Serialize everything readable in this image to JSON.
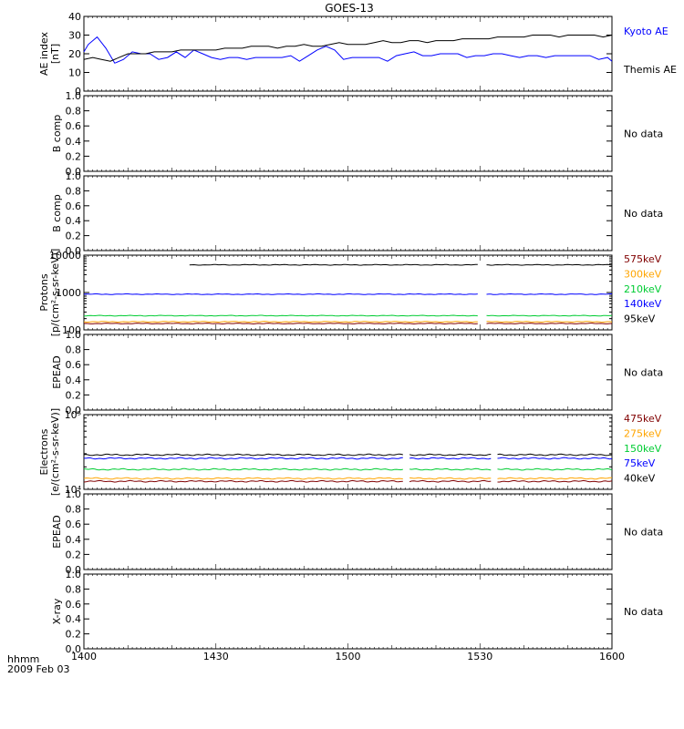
{
  "title": "GOES-13",
  "time_axis": {
    "ticks": [
      "1400",
      "1430",
      "1500",
      "1530",
      "1600"
    ],
    "label_units": "hhmm",
    "date": "2009 Feb 03"
  },
  "chart_data": [
    {
      "id": "ae",
      "type": "line",
      "ylabel": [
        "AE index",
        "[nT]"
      ],
      "ylim": [
        0,
        40
      ],
      "yticks": [
        "0",
        "10",
        "20",
        "30",
        "40"
      ],
      "legend": [
        {
          "label": "Kyoto AE",
          "color": "#0000ff"
        },
        {
          "label": "Themis AE",
          "color": "#000000"
        }
      ],
      "series": [
        {
          "name": "Kyoto AE",
          "color": "#0000ff",
          "t": [
            0,
            1,
            3,
            5,
            7,
            9,
            11,
            13,
            15,
            17,
            19,
            21,
            23,
            25,
            27,
            29,
            31,
            33,
            35,
            37,
            39,
            41,
            43,
            45,
            47,
            49,
            51,
            53,
            55,
            57,
            59,
            61,
            63,
            65,
            67,
            69,
            71,
            73,
            75,
            77,
            79,
            81,
            83,
            85,
            87,
            89,
            91,
            93,
            95,
            97,
            99,
            101,
            103,
            105,
            107,
            109,
            111,
            113,
            115,
            117,
            119,
            120
          ],
          "values": [
            21,
            25,
            29,
            23,
            15,
            17,
            21,
            20,
            20,
            17,
            18,
            21,
            18,
            22,
            20,
            18,
            17,
            18,
            18,
            17,
            18,
            18,
            18,
            18,
            19,
            16,
            19,
            22,
            24,
            22,
            17,
            18,
            18,
            18,
            18,
            16,
            19,
            20,
            21,
            19,
            19,
            20,
            20,
            20,
            18,
            19,
            19,
            20,
            20,
            19,
            18,
            19,
            19,
            18,
            19,
            19,
            19,
            19,
            19,
            17,
            18,
            16
          ]
        },
        {
          "name": "Themis AE",
          "color": "#000000",
          "t": [
            0,
            2,
            4,
            6,
            8,
            10,
            12,
            14,
            16,
            18,
            20,
            22,
            24,
            26,
            28,
            30,
            32,
            34,
            36,
            38,
            40,
            42,
            44,
            46,
            48,
            50,
            52,
            54,
            56,
            58,
            60,
            62,
            64,
            66,
            68,
            70,
            72,
            74,
            76,
            78,
            80,
            82,
            84,
            86,
            88,
            90,
            92,
            94,
            96,
            98,
            100,
            102,
            104,
            106,
            108,
            110,
            112,
            114,
            116,
            118,
            120
          ],
          "values": [
            17,
            18,
            17,
            16,
            18,
            20,
            20,
            20,
            21,
            21,
            21,
            22,
            22,
            22,
            22,
            22,
            23,
            23,
            23,
            24,
            24,
            24,
            23,
            24,
            24,
            25,
            24,
            24,
            25,
            26,
            25,
            25,
            25,
            26,
            27,
            26,
            26,
            27,
            27,
            26,
            27,
            27,
            27,
            28,
            28,
            28,
            28,
            29,
            29,
            29,
            29,
            30,
            30,
            30,
            29,
            30,
            30,
            30,
            30,
            29,
            30
          ]
        }
      ]
    },
    {
      "id": "bcomp1",
      "type": "line",
      "ylabel": [
        "B comp"
      ],
      "ylim": [
        0,
        1
      ],
      "yticks": [
        "0.0",
        "0.2",
        "0.4",
        "0.6",
        "0.8",
        "1.0"
      ],
      "status": "No data",
      "series": []
    },
    {
      "id": "bcomp2",
      "type": "line",
      "ylabel": [
        "B comp"
      ],
      "ylim": [
        0,
        1
      ],
      "yticks": [
        "0.0",
        "0.2",
        "0.4",
        "0.6",
        "0.8",
        "1.0"
      ],
      "status": "No data",
      "series": []
    },
    {
      "id": "protons",
      "type": "line",
      "log_scale": true,
      "ylabel": [
        "Protons",
        "[p/(cm²-s-sr-keV)]"
      ],
      "ylim": [
        100,
        10000
      ],
      "yticks": [
        "100",
        "1000",
        "10000"
      ],
      "gaps": [
        [
          89.5,
          91.5
        ]
      ],
      "legend": [
        {
          "label": "575keV",
          "color": "#800000"
        },
        {
          "label": "300keV",
          "color": "#ffa500"
        },
        {
          "label": "210keV",
          "color": "#00cc33"
        },
        {
          "label": "140keV",
          "color": "#0000ff"
        },
        {
          "label": "95keV",
          "color": "#000000"
        }
      ],
      "series": [
        {
          "name": "575keV",
          "color": "#800000",
          "base": 148,
          "from": 0,
          "to": 120
        },
        {
          "name": "300keV",
          "color": "#ffa500",
          "base": 165,
          "from": 0,
          "to": 120
        },
        {
          "name": "210keV",
          "color": "#00cc33",
          "base": 240,
          "from": 0,
          "to": 120
        },
        {
          "name": "140keV",
          "color": "#0000ff",
          "base": 900,
          "from": 0,
          "to": 120
        },
        {
          "name": "95keV",
          "color": "#000000",
          "base": 5500,
          "from": 24,
          "to": 120
        }
      ]
    },
    {
      "id": "epead1",
      "type": "line",
      "ylabel": [
        "EPEAD"
      ],
      "ylim": [
        0,
        1
      ],
      "yticks": [
        "0.0",
        "0.2",
        "0.4",
        "0.6",
        "0.8",
        "1.0"
      ],
      "status": "No data",
      "series": []
    },
    {
      "id": "electrons",
      "type": "line",
      "log_scale": true,
      "ylabel": [
        "Electrons",
        "[e/(cm²-s-sr-keV)]"
      ],
      "ylim": [
        10000,
        100000
      ],
      "yticks": [
        "10⁴",
        "10⁵"
      ],
      "gaps": [
        [
          72.5,
          74
        ],
        [
          92.5,
          94
        ]
      ],
      "legend": [
        {
          "label": "475keV",
          "color": "#800000"
        },
        {
          "label": "275keV",
          "color": "#ffa500"
        },
        {
          "label": "150keV",
          "color": "#00cc33"
        },
        {
          "label": "75keV",
          "color": "#0000ff"
        },
        {
          "label": "40keV",
          "color": "#000000"
        }
      ],
      "series": [
        {
          "name": "475keV",
          "color": "#800000",
          "base": 12800,
          "from": 0,
          "to": 120
        },
        {
          "name": "275keV",
          "color": "#ffa500",
          "base": 14000,
          "from": 0,
          "to": 120
        },
        {
          "name": "150keV",
          "color": "#00cc33",
          "base": 18500,
          "from": 0,
          "to": 120
        },
        {
          "name": "75keV",
          "color": "#0000ff",
          "base": 26000,
          "from": 0,
          "to": 120
        },
        {
          "name": "40keV",
          "color": "#000000",
          "base": 29000,
          "from": 0,
          "to": 120
        }
      ]
    },
    {
      "id": "epead2",
      "type": "line",
      "ylabel": [
        "EPEAD"
      ],
      "ylim": [
        0,
        1
      ],
      "yticks": [
        "0.0",
        "0.2",
        "0.4",
        "0.6",
        "0.8",
        "1.0"
      ],
      "status": "No data",
      "series": []
    },
    {
      "id": "xray",
      "type": "line",
      "ylabel": [
        "X-ray"
      ],
      "ylim": [
        0,
        1
      ],
      "yticks": [
        "0.0",
        "0.2",
        "0.4",
        "0.6",
        "0.8",
        "1.0"
      ],
      "status": "No data",
      "series": []
    }
  ]
}
